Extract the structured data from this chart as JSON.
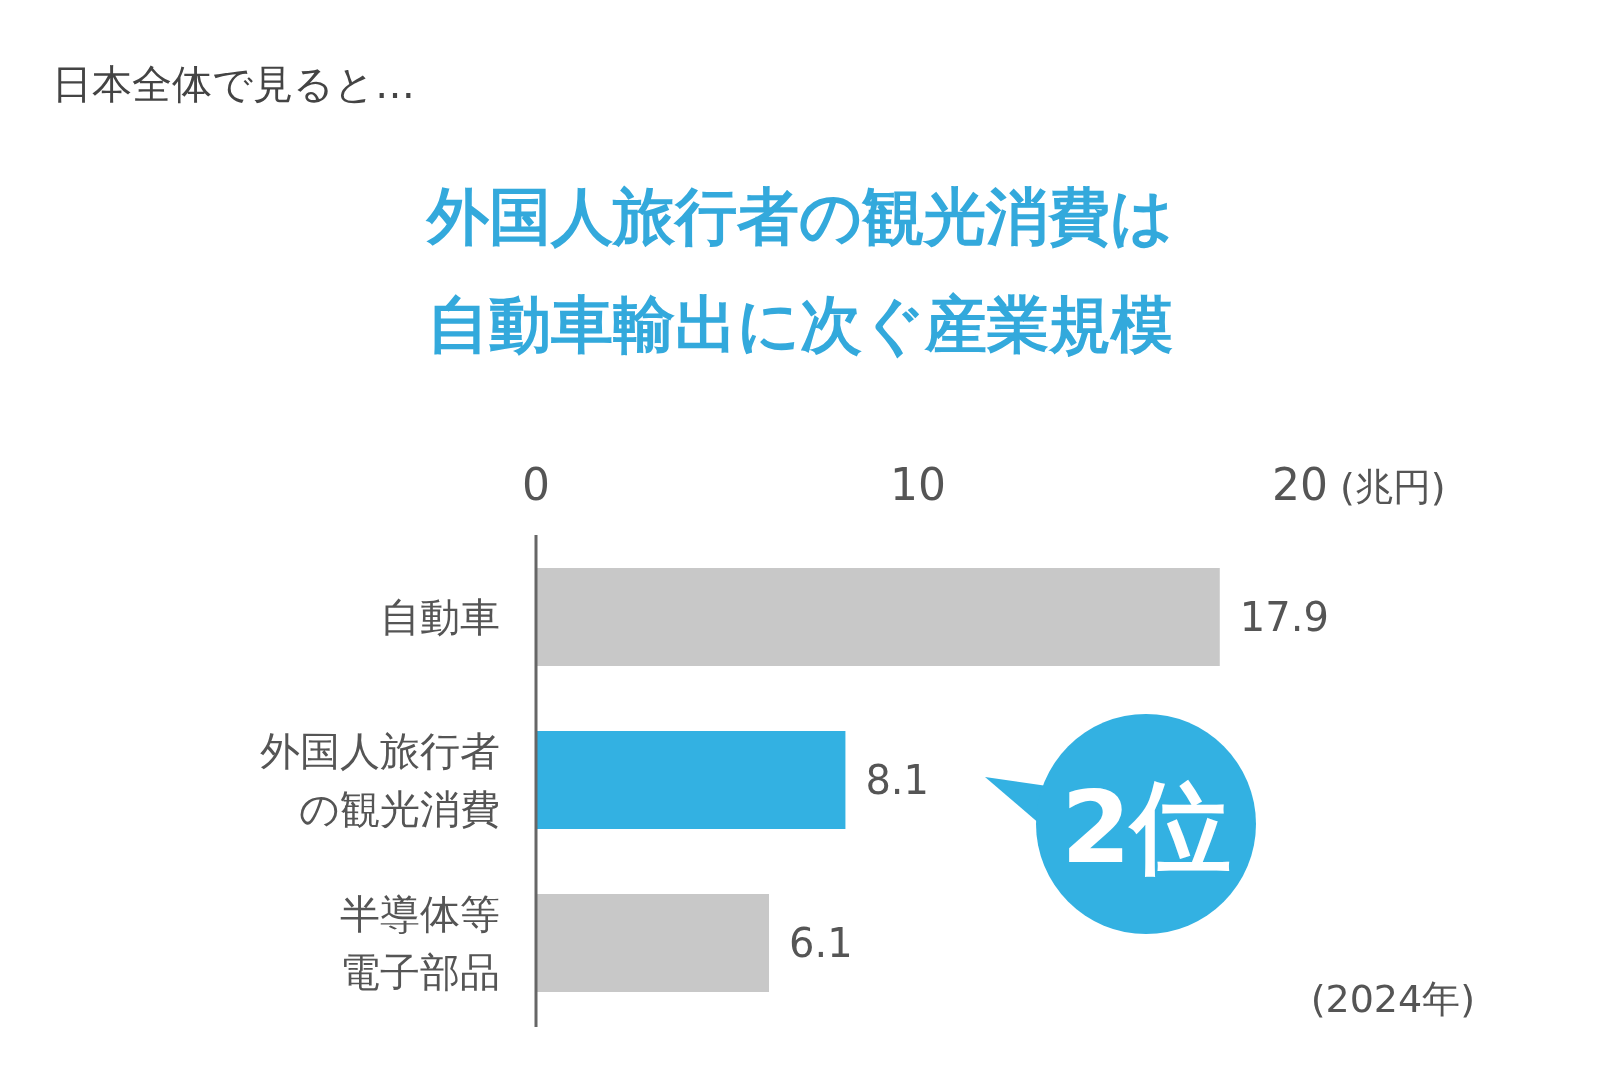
{
  "chart_data": {
    "type": "bar",
    "orientation": "horizontal",
    "subtitle": "日本全体で見ると…",
    "title": "外国人旅行者の観光消費は自動車輸出に次ぐ産業規模",
    "xlabel": "(兆円)",
    "categories": [
      "自動車",
      "外国人旅行者の観光消費",
      "半導体等電子部品"
    ],
    "values": [
      17.9,
      8.1,
      6.1
    ],
    "colors": [
      "#c8c8c8",
      "#33b1e2",
      "#c8c8c8"
    ],
    "xlim": [
      0,
      20
    ],
    "xticks": [
      0,
      10,
      20
    ],
    "data_labels": true,
    "annotations": [
      "2位",
      "(2024年)"
    ],
    "grid": false
  }
}
